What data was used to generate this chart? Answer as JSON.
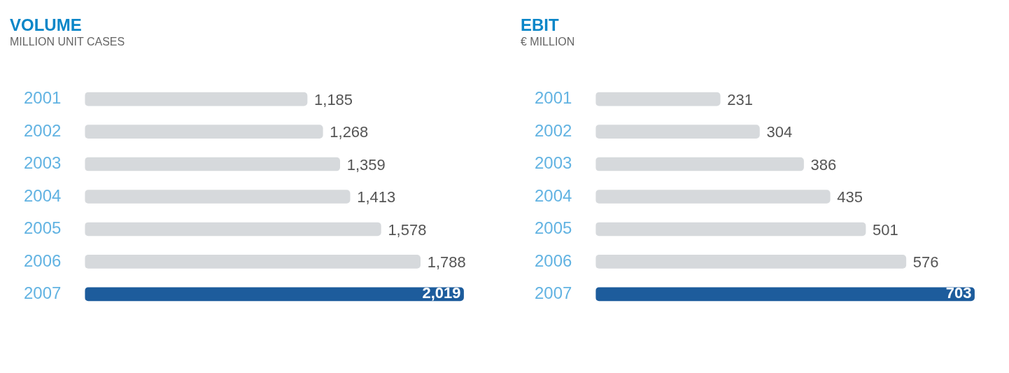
{
  "chart_data": [
    {
      "type": "bar",
      "orientation": "horizontal",
      "title": "VOLUME",
      "subtitle": "MILLION UNIT CASES",
      "categories": [
        "2001",
        "2002",
        "2003",
        "2004",
        "2005",
        "2006",
        "2007"
      ],
      "values": [
        1185,
        1268,
        1359,
        1413,
        1578,
        1788,
        2019
      ],
      "value_labels": [
        "1,185",
        "1,268",
        "1,359",
        "1,413",
        "1,578",
        "1,788",
        "2,019"
      ],
      "colors": [
        "#d6d9dc",
        "#d6d9dc",
        "#d6d9dc",
        "#d6d9dc",
        "#d6d9dc",
        "#d6d9dc",
        "#1d5c9c"
      ],
      "grid": false,
      "legend": false
    },
    {
      "type": "bar",
      "orientation": "horizontal",
      "title": "EBIT",
      "subtitle": "€ MILLION",
      "categories": [
        "2001",
        "2002",
        "2003",
        "2004",
        "2005",
        "2006",
        "2007"
      ],
      "values": [
        231,
        304,
        386,
        435,
        501,
        576,
        703
      ],
      "colors": [
        "#d6d9dc",
        "#d6d9dc",
        "#d6d9dc",
        "#d6d9dc",
        "#d6d9dc",
        "#d6d9dc",
        "#1d5c9c"
      ],
      "data_labels": true,
      "grid": false,
      "legend": false
    }
  ]
}
